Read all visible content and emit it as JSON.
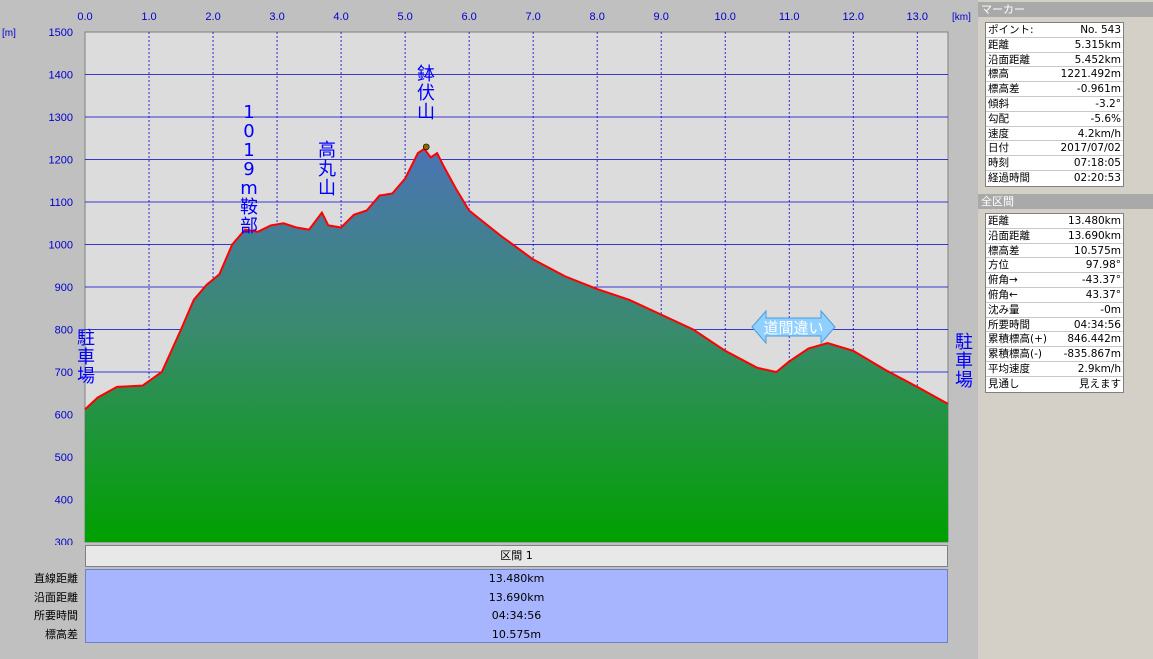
{
  "chart_data": {
    "type": "area",
    "x_unit": "[km]",
    "y_unit": "[m]",
    "xlim": [
      0.0,
      13.48
    ],
    "ylim": [
      300,
      1500
    ],
    "x_ticks": [
      "0.0",
      "1.0",
      "2.0",
      "3.0",
      "4.0",
      "5.0",
      "6.0",
      "7.0",
      "8.0",
      "9.0",
      "10.0",
      "11.0",
      "12.0",
      "13.0"
    ],
    "y_ticks": [
      "1500",
      "1400",
      "1300",
      "1200",
      "1100",
      "1000",
      "900",
      "800",
      "700",
      "600",
      "500",
      "400",
      "300"
    ],
    "series": [
      {
        "color": "#ff0000",
        "x": [
          0.0,
          0.2,
          0.5,
          0.9,
          1.2,
          1.5,
          1.7,
          1.9,
          2.1,
          2.3,
          2.5,
          2.7,
          2.9,
          3.1,
          3.3,
          3.5,
          3.7,
          3.8,
          4.0,
          4.2,
          4.4,
          4.6,
          4.8,
          5.0,
          5.2,
          5.3,
          5.4,
          5.5,
          5.6,
          5.8,
          6.0,
          6.5,
          7.0,
          7.5,
          8.0,
          8.5,
          9.0,
          9.5,
          10.0,
          10.5,
          10.8,
          11.0,
          11.3,
          11.6,
          12.0,
          12.5,
          13.0,
          13.48
        ],
        "y": [
          612,
          640,
          665,
          668,
          700,
          800,
          870,
          905,
          930,
          1000,
          1035,
          1030,
          1045,
          1050,
          1040,
          1035,
          1075,
          1045,
          1040,
          1070,
          1080,
          1115,
          1120,
          1155,
          1215,
          1225,
          1205,
          1215,
          1185,
          1130,
          1080,
          1020,
          965,
          925,
          895,
          870,
          835,
          800,
          750,
          710,
          700,
          725,
          755,
          768,
          750,
          705,
          665,
          625
        ]
      }
    ],
    "annotations": [
      {
        "text": "駐車場",
        "x": 0.0
      },
      {
        "text": "1019m鞍部",
        "x": 2.5
      },
      {
        "text": "高丸山",
        "x": 3.8
      },
      {
        "text": "鉢伏山",
        "x": 5.33
      },
      {
        "text": "道間違い",
        "x": 10.9
      },
      {
        "text": "駐車場",
        "x": 13.48
      }
    ]
  },
  "marker_panel": {
    "title": "マーカー",
    "rows": [
      {
        "label": "ポイント:",
        "value": "No. 543"
      },
      {
        "label": "距離",
        "value": "5.315km"
      },
      {
        "label": "沿面距離",
        "value": "5.452km"
      },
      {
        "label": "標高",
        "value": "1221.492m"
      },
      {
        "label": "標高差",
        "value": "-0.961m"
      },
      {
        "label": "傾斜",
        "value": "-3.2°"
      },
      {
        "label": "勾配",
        "value": "-5.6%"
      },
      {
        "label": "速度",
        "value": "4.2km/h"
      },
      {
        "label": "日付",
        "value": "2017/07/02"
      },
      {
        "label": "時刻",
        "value": "07:18:05"
      },
      {
        "label": "経過時間",
        "value": "02:20:53"
      }
    ]
  },
  "total_panel": {
    "title": "全区間",
    "rows": [
      {
        "label": "距離",
        "value": "13.480km"
      },
      {
        "label": "沿面距離",
        "value": "13.690km"
      },
      {
        "label": "標高差",
        "value": "10.575m"
      },
      {
        "label": "方位",
        "value": "97.98°"
      },
      {
        "label": "俯角→",
        "value": "-43.37°"
      },
      {
        "label": "俯角←",
        "value": "43.37°"
      },
      {
        "label": "沈み量",
        "value": "-0m"
      },
      {
        "label": "所要時間",
        "value": "04:34:56"
      },
      {
        "label": "累積標高(+)",
        "value": "846.442m"
      },
      {
        "label": "累積標高(-)",
        "value": "-835.867m"
      },
      {
        "label": "平均速度",
        "value": "2.9km/h"
      },
      {
        "label": "見通し",
        "value": "見えます"
      }
    ]
  },
  "section": {
    "header": "区間 1",
    "labels": [
      "直線距離",
      "沿面距離",
      "所要時間",
      "標高差"
    ],
    "values": [
      "13.480km",
      "13.690km",
      "04:34:56",
      "10.575m"
    ]
  },
  "colors": {
    "plot_bg": "#dcdcdc",
    "grid": "#0000cc",
    "axis_text": "#0000cc",
    "line": "#ff0000",
    "fill_top": "#4c78a8",
    "fill_bottom": "#00a000",
    "annotation": "#0000ff"
  }
}
